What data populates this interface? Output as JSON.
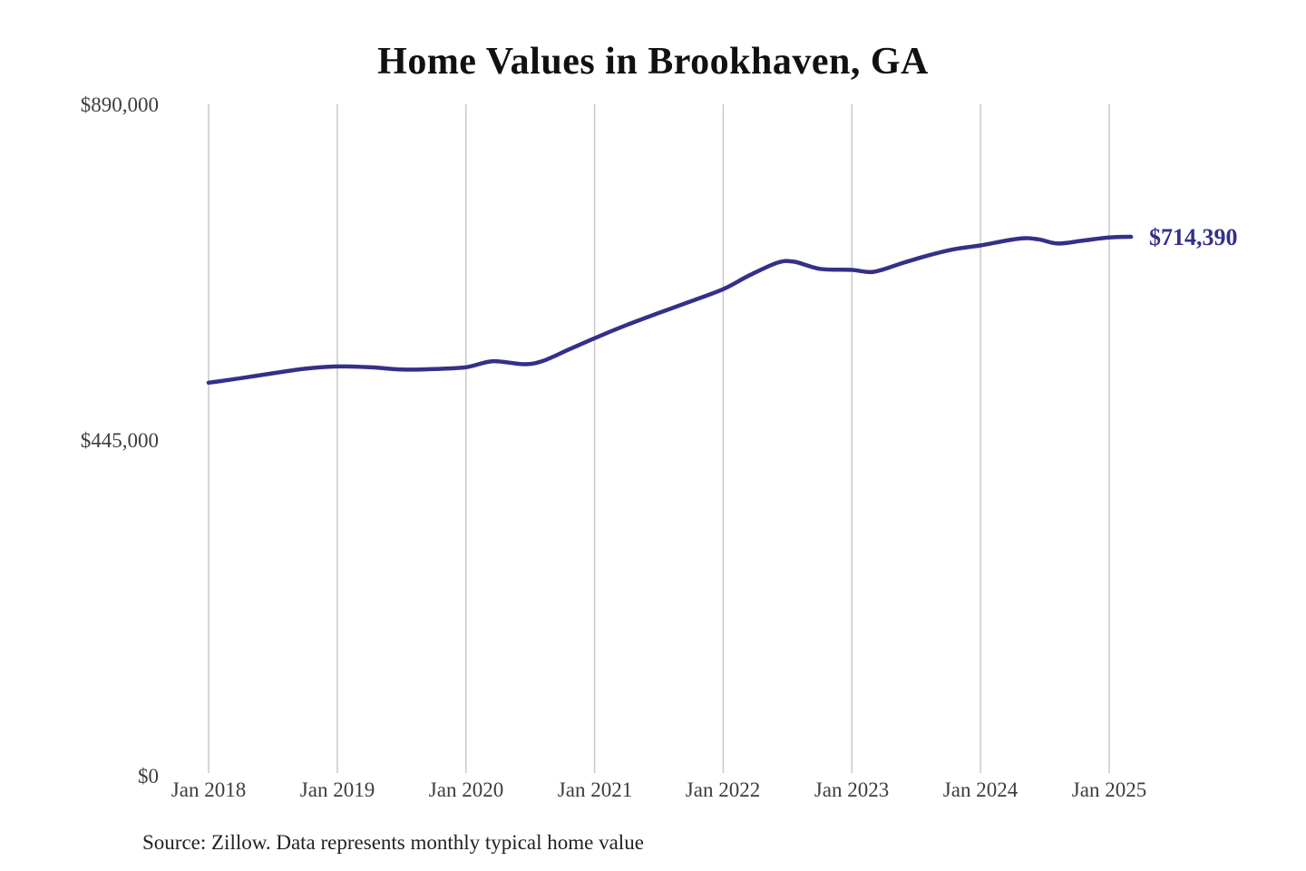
{
  "chart_data": {
    "type": "line",
    "title": "Home Values in Brookhaven, GA",
    "source_note": "Source: Zillow. Data represents monthly typical home value",
    "end_label": "$714,390",
    "end_value": 714390,
    "line_color": "#34308a",
    "end_label_color": "#34308a",
    "grid_color": "#c9c9c9",
    "xlabel": "",
    "ylabel": "",
    "ylim": [
      0,
      890000
    ],
    "xlim": [
      2018,
      2025.17
    ],
    "grid": "vertical-only",
    "legend_position": "none",
    "y_ticks": [
      {
        "label": "$890,000",
        "value": 890000
      },
      {
        "label": "$445,000",
        "value": 445000
      },
      {
        "label": "$0",
        "value": 0
      }
    ],
    "x_ticks": [
      {
        "label": "Jan 2018",
        "year": 2018
      },
      {
        "label": "Jan 2019",
        "year": 2019
      },
      {
        "label": "Jan 2020",
        "year": 2020
      },
      {
        "label": "Jan 2021",
        "year": 2021
      },
      {
        "label": "Jan 2022",
        "year": 2022
      },
      {
        "label": "Jan 2023",
        "year": 2023
      },
      {
        "label": "Jan 2024",
        "year": 2024
      },
      {
        "label": "Jan 2025",
        "year": 2025
      }
    ],
    "series": [
      {
        "name": "Monthly typical home value",
        "points": [
          {
            "x": 2018.0,
            "y": 521000
          },
          {
            "x": 2018.25,
            "y": 527000
          },
          {
            "x": 2018.5,
            "y": 533500
          },
          {
            "x": 2018.75,
            "y": 539500
          },
          {
            "x": 2019.0,
            "y": 542500
          },
          {
            "x": 2019.25,
            "y": 541500
          },
          {
            "x": 2019.5,
            "y": 538500
          },
          {
            "x": 2019.75,
            "y": 539000
          },
          {
            "x": 2020.0,
            "y": 541500
          },
          {
            "x": 2020.21,
            "y": 549500
          },
          {
            "x": 2020.45,
            "y": 545500
          },
          {
            "x": 2020.6,
            "y": 550000
          },
          {
            "x": 2020.8,
            "y": 565000
          },
          {
            "x": 2021.0,
            "y": 580000
          },
          {
            "x": 2021.25,
            "y": 597500
          },
          {
            "x": 2021.5,
            "y": 613500
          },
          {
            "x": 2021.75,
            "y": 629000
          },
          {
            "x": 2022.0,
            "y": 645000
          },
          {
            "x": 2022.2,
            "y": 663000
          },
          {
            "x": 2022.42,
            "y": 680000
          },
          {
            "x": 2022.55,
            "y": 681500
          },
          {
            "x": 2022.75,
            "y": 672000
          },
          {
            "x": 2023.0,
            "y": 670500
          },
          {
            "x": 2023.17,
            "y": 668000
          },
          {
            "x": 2023.4,
            "y": 680000
          },
          {
            "x": 2023.6,
            "y": 690000
          },
          {
            "x": 2023.8,
            "y": 698000
          },
          {
            "x": 2024.0,
            "y": 703000
          },
          {
            "x": 2024.3,
            "y": 712000
          },
          {
            "x": 2024.45,
            "y": 711000
          },
          {
            "x": 2024.6,
            "y": 705500
          },
          {
            "x": 2024.8,
            "y": 709500
          },
          {
            "x": 2025.0,
            "y": 713500
          },
          {
            "x": 2025.17,
            "y": 714390
          }
        ]
      }
    ]
  }
}
